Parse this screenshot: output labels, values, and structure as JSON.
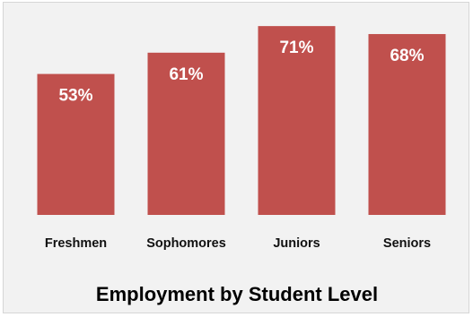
{
  "chart_data": {
    "type": "bar",
    "title": "Employment by Student Level",
    "categories": [
      "Freshmen",
      "Sophomores",
      "Juniors",
      "Seniors"
    ],
    "values": [
      53,
      61,
      71,
      68
    ],
    "value_labels": [
      "53%",
      "61%",
      "71%",
      "68%"
    ],
    "unit": "%",
    "ylim": [
      0,
      100
    ],
    "grid": false,
    "legend": "none",
    "bar_color": "#c0504d",
    "label_color": "#ffffff",
    "background_color": "#f2f2f2"
  }
}
